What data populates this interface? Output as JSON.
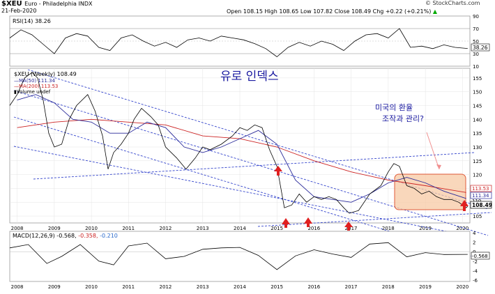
{
  "header": {
    "symbol": "$XEU",
    "name": "Euro - Philadelphia INDX",
    "date": "21-Feb-2020",
    "watermark": "© StockCharts.com",
    "ohlc_text": "Open 108.15  High 108.65  Low 107.82  Close 108.49  Chg +0.22 (+0.21%)",
    "chg_arrow": "▲"
  },
  "rsi_panel": {
    "label": "RSI(14) 38.26",
    "ticks": [
      "90",
      "70",
      "50",
      "30",
      "10"
    ],
    "current_value": "38.26"
  },
  "main_panel": {
    "annotation_title": "유로 인덱스",
    "annotation_question_line1": "미국의 환율",
    "annotation_question_line2": "조작과 관리?",
    "legend": [
      {
        "text": "$XEU (Weekly) 108.49",
        "color": "#000000"
      },
      {
        "text": "MA(50) 111.34",
        "color": "#2a2a9a"
      },
      {
        "text": "MA(200) 113.53",
        "color": "#cc2222"
      },
      {
        "text": "Volume undef",
        "color": "#000000"
      }
    ],
    "y_ticks": [
      "155",
      "150",
      "145",
      "140",
      "135",
      "130",
      "125",
      "120",
      "115",
      "110",
      "105"
    ],
    "price_labels": [
      "113.53",
      "111.34",
      "110",
      "108.49"
    ],
    "year_labels": [
      "2008",
      "2009",
      "2010",
      "2011",
      "2012",
      "2013",
      "2014",
      "2015",
      "2016",
      "2017",
      "2018",
      "2019",
      "2020"
    ]
  },
  "macd_panel": {
    "label_main": "MACD(12,26,9) -0.568,",
    "label_signal": "-0.358,",
    "label_hist": "-0.210",
    "ticks": [
      "4",
      "2",
      "0",
      "-2",
      "-4",
      "-6"
    ],
    "current_value": "-0.568",
    "year_labels": [
      "2008",
      "2009",
      "2010",
      "2011",
      "2012",
      "2013",
      "2014",
      "2015",
      "2016",
      "2017",
      "2018",
      "2019",
      "2020"
    ]
  },
  "colors": {
    "price": "#000000",
    "ma50": "#2a2a9a",
    "ma200": "#cc2222",
    "channel": "#3344cc",
    "arrow": "#e02020",
    "box_fill": "#f7c9a4",
    "box_stroke": "#e05a3a",
    "annotation": "#1a1aa0"
  },
  "chart_data": {
    "type": "line",
    "title": "$XEU Euro - Philadelphia INDX",
    "ylabel": "",
    "xlabel": "",
    "ylim": [
      103,
      158
    ],
    "x_range": [
      2007.8,
      2020.2
    ],
    "series": [
      {
        "name": "$XEU (Weekly) 108.49",
        "x": [
          2007.8,
          2008.0,
          2008.2,
          2008.4,
          2008.55,
          2008.7,
          2008.85,
          2009.0,
          2009.2,
          2009.4,
          2009.6,
          2009.9,
          2010.1,
          2010.3,
          2010.45,
          2010.6,
          2010.8,
          2011.0,
          2011.15,
          2011.35,
          2011.6,
          2011.8,
          2012.0,
          2012.3,
          2012.55,
          2012.8,
          2013.0,
          2013.2,
          2013.5,
          2013.8,
          2014.0,
          2014.2,
          2014.4,
          2014.6,
          2014.8,
          2015.0,
          2015.2,
          2015.4,
          2015.6,
          2015.8,
          2016.0,
          2016.2,
          2016.4,
          2016.6,
          2016.8,
          2016.95,
          2017.2,
          2017.5,
          2017.8,
          2018.0,
          2018.15,
          2018.3,
          2018.5,
          2018.7,
          2018.9,
          2019.1,
          2019.3,
          2019.5,
          2019.7,
          2019.9,
          2020.1,
          2020.14
        ],
        "values": [
          145,
          149,
          155,
          157,
          155,
          147,
          135,
          130,
          131,
          140,
          145,
          149,
          143,
          134,
          122,
          128,
          131,
          135,
          140,
          144,
          141,
          138,
          130,
          126,
          122,
          126,
          130,
          129,
          131,
          134,
          137,
          136,
          138,
          137,
          129,
          123,
          108,
          109,
          113,
          110,
          112,
          111,
          112,
          111,
          108,
          106,
          107,
          113,
          116,
          121,
          124,
          123,
          116,
          115,
          113,
          114,
          112,
          111,
          111,
          110,
          108,
          108.49
        ]
      },
      {
        "name": "MA(50) 111.34",
        "x": [
          2008.0,
          2008.5,
          2009.0,
          2009.5,
          2010.0,
          2010.5,
          2011.0,
          2011.5,
          2012.0,
          2012.5,
          2013.0,
          2013.5,
          2014.0,
          2014.5,
          2015.0,
          2015.5,
          2016.0,
          2016.5,
          2017.0,
          2017.5,
          2018.0,
          2018.5,
          2019.0,
          2019.5,
          2020.1
        ],
        "values": [
          147,
          149,
          146,
          140,
          139,
          135,
          135,
          139,
          137,
          130,
          128,
          130,
          133,
          136,
          131,
          118,
          112,
          111,
          110,
          113,
          117,
          119,
          117,
          114,
          111.34
        ]
      },
      {
        "name": "MA(200) 113.53",
        "x": [
          2008.0,
          2009.0,
          2010.0,
          2011.0,
          2012.0,
          2013.0,
          2014.0,
          2015.0,
          2016.0,
          2017.0,
          2018.0,
          2019.0,
          2020.1
        ],
        "values": [
          137,
          139,
          140,
          139,
          138,
          134,
          133,
          130,
          125,
          121,
          118,
          116,
          113.53
        ]
      }
    ],
    "rsi": {
      "label": "RSI(14) 38.26",
      "ylim": [
        10,
        90
      ],
      "x": [
        2007.8,
        2008.1,
        2008.4,
        2008.7,
        2009.0,
        2009.3,
        2009.6,
        2009.9,
        2010.2,
        2010.5,
        2010.8,
        2011.1,
        2011.4,
        2011.7,
        2012.0,
        2012.3,
        2012.6,
        2012.9,
        2013.2,
        2013.5,
        2013.8,
        2014.1,
        2014.4,
        2014.7,
        2015.0,
        2015.3,
        2015.6,
        2015.9,
        2016.2,
        2016.5,
        2016.8,
        2017.1,
        2017.4,
        2017.7,
        2018.0,
        2018.3,
        2018.6,
        2018.9,
        2019.2,
        2019.5,
        2019.8,
        2020.14
      ],
      "values": [
        55,
        68,
        60,
        45,
        30,
        55,
        62,
        58,
        40,
        35,
        55,
        60,
        50,
        42,
        48,
        40,
        52,
        55,
        50,
        58,
        55,
        52,
        46,
        38,
        25,
        40,
        48,
        42,
        50,
        45,
        35,
        50,
        60,
        62,
        55,
        70,
        40,
        42,
        38,
        44,
        40,
        38.26
      ]
    },
    "macd": {
      "label": "MACD(12,26,9) -0.568, -0.358, -0.210",
      "ylim": [
        -6,
        4
      ],
      "x": [
        2007.8,
        2008.3,
        2008.8,
        2009.2,
        2009.7,
        2010.2,
        2010.6,
        2011.0,
        2011.5,
        2012.0,
        2012.5,
        2013.0,
        2013.5,
        2014.0,
        2014.5,
        2015.0,
        2015.5,
        2016.0,
        2016.5,
        2017.0,
        2017.5,
        2018.0,
        2018.5,
        2019.0,
        2019.5,
        2020.14
      ],
      "values": [
        0.8,
        1.5,
        -2.5,
        -1.0,
        1.5,
        -2.0,
        -2.8,
        1.2,
        1.8,
        -1.5,
        -1.0,
        0.5,
        0.8,
        0.9,
        -0.8,
        -3.8,
        -0.9,
        0.4,
        -0.5,
        -1.2,
        1.6,
        1.9,
        -1.1,
        -0.2,
        -0.6,
        -0.568
      ]
    }
  }
}
